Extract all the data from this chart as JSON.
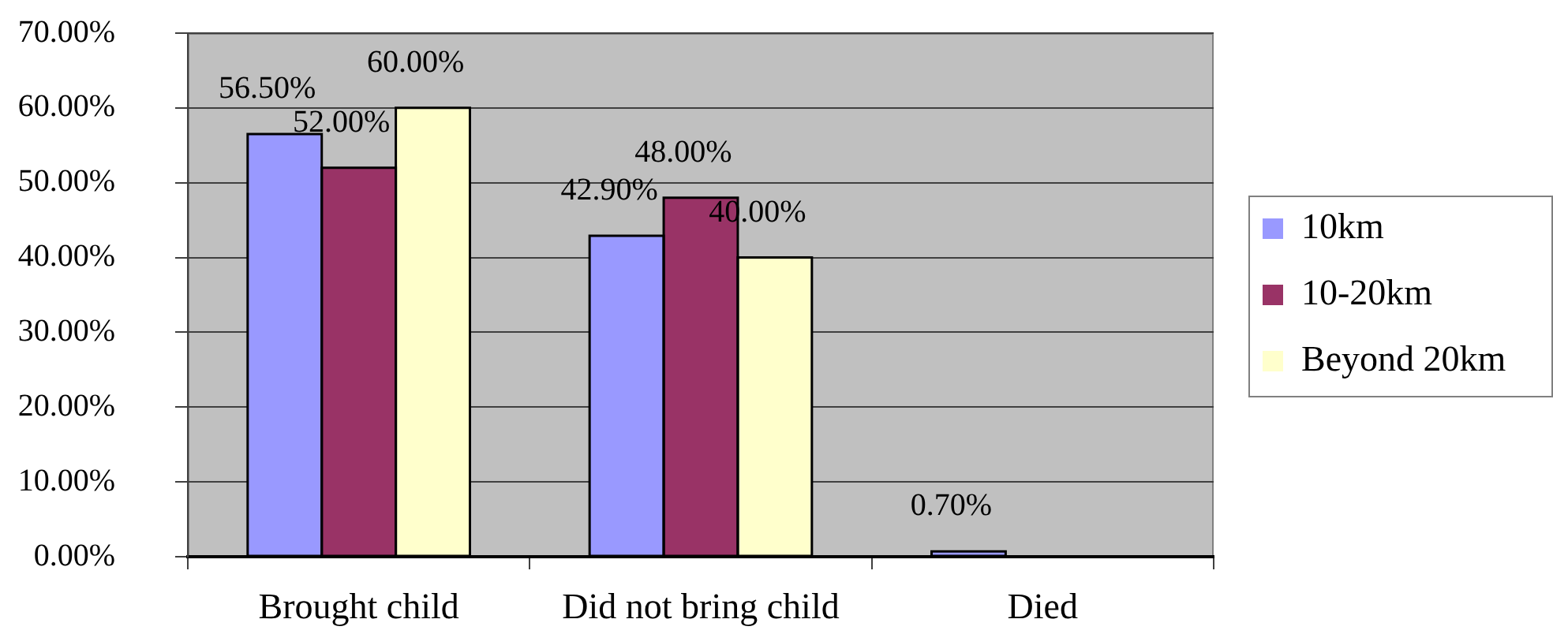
{
  "chart_data": {
    "type": "bar",
    "categories": [
      "Brought child",
      "Did not bring child",
      "Died"
    ],
    "series": [
      {
        "name": "10km",
        "color": "#9999ff",
        "values": [
          56.5,
          42.9,
          0.7
        ],
        "value_labels": [
          "56.50%",
          "42.90%",
          "0.70%"
        ]
      },
      {
        "name": "10-20km",
        "color": "#993366",
        "values": [
          52.0,
          48.0,
          null
        ],
        "value_labels": [
          "52.00%",
          "48.00%",
          null
        ]
      },
      {
        "name": "Beyond 20km",
        "color": "#ffffcc",
        "values": [
          60.0,
          40.0,
          null
        ],
        "value_labels": [
          "60.00%",
          "40.00%",
          null
        ]
      }
    ],
    "ylim": [
      0,
      70
    ],
    "yticks": [
      {
        "value": 0,
        "label": "0.00%"
      },
      {
        "value": 10,
        "label": "10.00%"
      },
      {
        "value": 20,
        "label": "20.00%"
      },
      {
        "value": 30,
        "label": "30.00%"
      },
      {
        "value": 40,
        "label": "40.00%"
      },
      {
        "value": 50,
        "label": "50.00%"
      },
      {
        "value": 60,
        "label": "60.00%"
      },
      {
        "value": 70,
        "label": "70.00%"
      }
    ],
    "grid": "y",
    "legend": "right"
  }
}
